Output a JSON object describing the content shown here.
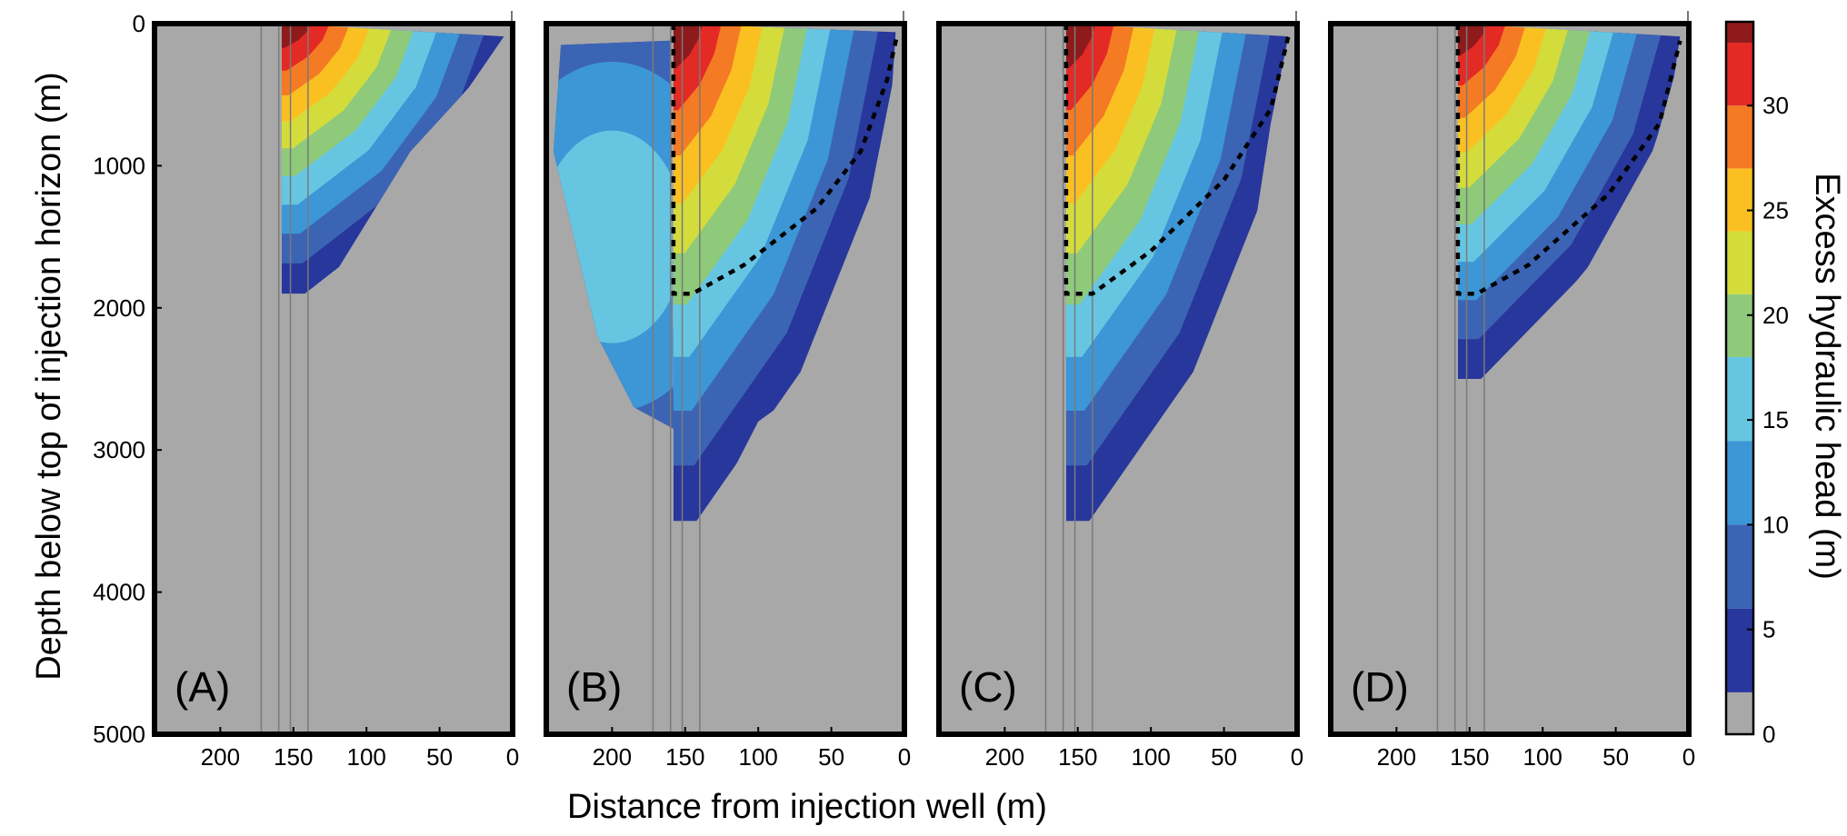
{
  "chart_data": {
    "type": "heatmap",
    "xlabel": "Distance from injection well (m)",
    "ylabel": "Depth below top of injection horizon (m)",
    "colorbar_label": "Excess hydraulic head (m)",
    "x_axis": {
      "reversed": true,
      "xlim": [
        245,
        0
      ],
      "ticks": [
        200,
        150,
        100,
        50,
        0
      ]
    },
    "y_axis": {
      "reversed": true,
      "ylim": [
        0,
        5000
      ],
      "ticks": [
        0,
        1000,
        2000,
        3000,
        4000,
        5000
      ]
    },
    "colorbar": {
      "range": [
        0,
        34
      ],
      "ticks": [
        0,
        5,
        10,
        15,
        20,
        25,
        30
      ]
    },
    "background_color": "#a8a8a8",
    "color_levels": [
      {
        "min": 2,
        "color": "#27379b"
      },
      {
        "min": 6,
        "color": "#3c64b4"
      },
      {
        "min": 10,
        "color": "#3d96d6"
      },
      {
        "min": 14,
        "color": "#66c6e2"
      },
      {
        "min": 18,
        "color": "#8fca7a"
      },
      {
        "min": 21,
        "color": "#d4dc3c"
      },
      {
        "min": 24,
        "color": "#fac022"
      },
      {
        "min": 27,
        "color": "#f47b24"
      },
      {
        "min": 30,
        "color": "#e42a25"
      },
      {
        "min": 33,
        "color": "#8e1a1c"
      }
    ],
    "panels": [
      {
        "label": "(A)",
        "well_bottom": 1900,
        "fault_core_x": 158,
        "vertical_lines": [
          172,
          160,
          152,
          140
        ],
        "plume_outline": [
          [
            158,
            0
          ],
          [
            6,
            90
          ],
          [
            30,
            450
          ],
          [
            70,
            900
          ],
          [
            130,
            1900
          ],
          [
            158,
            1900
          ]
        ],
        "dashed_contour": []
      },
      {
        "label": "(B)",
        "well_bottom": 3500,
        "fault_core_x": 158,
        "vertical_lines": [
          172,
          160,
          152,
          140
        ],
        "plume_outline": [
          [
            158,
            0
          ],
          [
            6,
            60
          ],
          [
            10,
            700
          ],
          [
            18,
            1800
          ],
          [
            28,
            2200
          ],
          [
            60,
            2500
          ],
          [
            100,
            2800
          ],
          [
            135,
            3500
          ],
          [
            158,
            3500
          ]
        ],
        "fault_side_outline": [
          [
            160,
            120
          ],
          [
            235,
            150
          ],
          [
            240,
            900
          ],
          [
            210,
            2200
          ],
          [
            185,
            2700
          ],
          [
            158,
            2850
          ]
        ],
        "dashed_contour": [
          [
            158,
            0
          ],
          [
            158,
            1900
          ],
          [
            145,
            1900
          ],
          [
            110,
            1700
          ],
          [
            60,
            1300
          ],
          [
            30,
            900
          ],
          [
            12,
            400
          ],
          [
            5,
            80
          ]
        ]
      },
      {
        "label": "(C)",
        "well_bottom": 3500,
        "fault_core_x": 158,
        "vertical_lines": [
          172,
          160,
          152,
          140
        ],
        "plume_outline": [
          [
            158,
            0
          ],
          [
            6,
            90
          ],
          [
            18,
            700
          ],
          [
            30,
            1500
          ],
          [
            50,
            2300
          ],
          [
            80,
            2900
          ],
          [
            130,
            3500
          ],
          [
            158,
            3500
          ]
        ],
        "dashed_contour": [
          [
            158,
            0
          ],
          [
            158,
            1900
          ],
          [
            140,
            1900
          ],
          [
            100,
            1600
          ],
          [
            50,
            1100
          ],
          [
            18,
            600
          ],
          [
            6,
            90
          ]
        ]
      },
      {
        "label": "(D)",
        "well_bottom": 2500,
        "fault_core_x": 158,
        "vertical_lines": [
          172,
          160,
          152,
          140
        ],
        "plume_outline": [
          [
            158,
            0
          ],
          [
            6,
            90
          ],
          [
            12,
            500
          ],
          [
            25,
            900
          ],
          [
            60,
            1600
          ],
          [
            100,
            2100
          ],
          [
            135,
            2500
          ],
          [
            158,
            2500
          ]
        ],
        "dashed_contour": [
          [
            158,
            0
          ],
          [
            158,
            1900
          ],
          [
            145,
            1900
          ],
          [
            110,
            1700
          ],
          [
            55,
            1200
          ],
          [
            20,
            700
          ],
          [
            6,
            120
          ]
        ]
      }
    ]
  }
}
